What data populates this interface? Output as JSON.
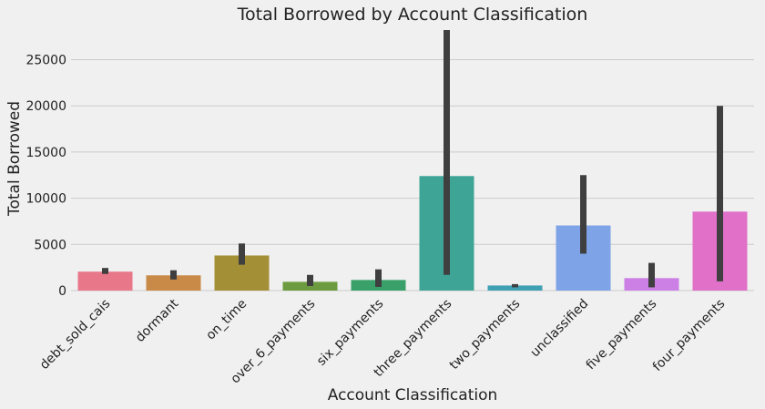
{
  "chart_data": {
    "type": "bar",
    "title": "Total Borrowed by Account Classification",
    "xlabel": "Account Classification",
    "ylabel": "Total Borrowed",
    "ylim": [
      0,
      28500
    ],
    "yticks": [
      0,
      5000,
      10000,
      15000,
      20000,
      25000
    ],
    "grid": true,
    "categories": [
      "debt_sold_cais",
      "dormant",
      "on_time",
      "over_6_payments",
      "six_payments",
      "three_payments",
      "two_payments",
      "unclassified",
      "five_payments",
      "four_payments"
    ],
    "values": [
      2050,
      1650,
      3800,
      950,
      1150,
      12400,
      550,
      7050,
      1350,
      8550
    ],
    "error_bars": [
      [
        1800,
        2450
      ],
      [
        1200,
        2200
      ],
      [
        2800,
        5100
      ],
      [
        500,
        1700
      ],
      [
        400,
        2300
      ],
      [
        1700,
        28200
      ],
      [
        350,
        700
      ],
      [
        4000,
        12500
      ],
      [
        350,
        3000
      ],
      [
        1000,
        20000
      ]
    ],
    "colors": [
      "#e8778a",
      "#c98a47",
      "#a38f36",
      "#6d9c40",
      "#3aa06a",
      "#3ea596",
      "#40a0b3",
      "#7ea3e6",
      "#cc80e6",
      "#e070c8"
    ],
    "error_color": "#3f3f3f"
  }
}
